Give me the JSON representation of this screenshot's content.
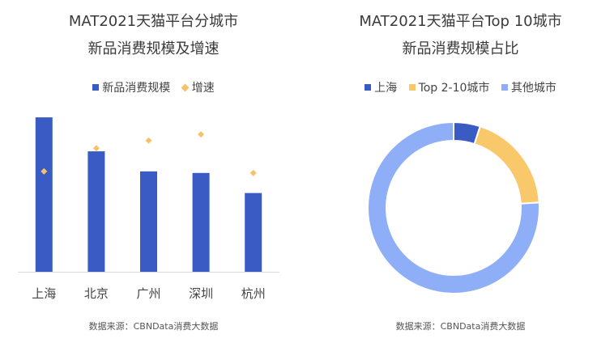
{
  "chart_data": [
    {
      "type": "bar",
      "title_line1": "MAT2021天猫平台分城市",
      "title_line2": "新品消费规模及增速",
      "categories": [
        "上海",
        "北京",
        "广州",
        "深圳",
        "杭州"
      ],
      "series": [
        {
          "name": "新品消费规模",
          "kind": "bar",
          "color": "#3b5bc4",
          "values": [
            100,
            78,
            65,
            64,
            51
          ]
        },
        {
          "name": "增速",
          "kind": "marker",
          "color": "#f5c26b",
          "values": [
            65,
            80,
            85,
            89,
            64
          ]
        }
      ],
      "ylim": [
        0,
        110
      ],
      "grid": false,
      "legend_placement": "top",
      "source": "数据来源：CBNData消费大数据"
    },
    {
      "type": "pie",
      "donut": true,
      "title_line1": "MAT2021天猫平台Top 10城市",
      "title_line2": "新品消费规模占比",
      "slices": [
        {
          "label": "上海",
          "value": 5,
          "color": "#3b5bc4"
        },
        {
          "label": "Top 2-10城市",
          "value": 19,
          "color": "#f9c86b"
        },
        {
          "label": "其他城市",
          "value": 76,
          "color": "#8eaef7"
        }
      ],
      "legend_placement": "top",
      "source": "数据来源：CBNData消费大数据"
    }
  ]
}
